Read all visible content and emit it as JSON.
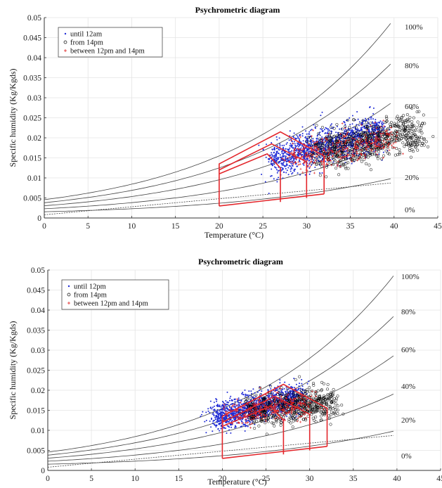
{
  "chart_data": [
    {
      "type": "scatter",
      "title": "Psychrometric diagram",
      "xlabel": "Temperature (°C)",
      "ylabel": "Specific humidity (Kg/Kgds)",
      "xlim": [
        0,
        45
      ],
      "ylim": [
        0,
        0.05
      ],
      "xticks": [
        "0",
        "5",
        "10",
        "15",
        "20",
        "25",
        "30",
        "35",
        "40",
        "45"
      ],
      "yticks": [
        "0",
        "0.005",
        "0.01",
        "0.015",
        "0.02",
        "0.025",
        "0.03",
        "0.035",
        "0.04",
        "0.045",
        "0.05"
      ],
      "grid": true,
      "legend_position": "top-left",
      "rh_curve_labels": [
        {
          "rh": 1.0,
          "label": "100%"
        },
        {
          "rh": 0.8,
          "label": "80%"
        },
        {
          "rh": 0.6,
          "label": "60%"
        },
        {
          "rh": 0.4,
          "label": "40%"
        },
        {
          "rh": 0.2,
          "label": "20%"
        },
        {
          "rh": 0.0,
          "label": "0%"
        }
      ],
      "comfort_zones": [
        {
          "points": [
            [
              20,
              0.003
            ],
            [
              20,
              0.0135
            ],
            [
              27,
              0.0215
            ],
            [
              32,
              0.0155
            ],
            [
              32,
              0.006
            ]
          ]
        },
        {
          "points": [
            [
              20,
              0.012
            ],
            [
              26,
              0.0185
            ],
            [
              30,
              0.014
            ],
            [
              30,
              0.005
            ]
          ]
        },
        {
          "points": [
            [
              20,
              0.011
            ],
            [
              25.5,
              0.016
            ],
            [
              27,
              0.0125
            ],
            [
              27,
              0.004
            ]
          ]
        }
      ],
      "series": [
        {
          "name": "until 12am",
          "marker": "dot",
          "color": "#1f2bd6",
          "cloud": {
            "x_range": [
              26,
              38.5
            ],
            "center_y_at_xmin": 0.0145,
            "center_y_at_xmax": 0.0215,
            "spread": 0.005,
            "count": 1400
          }
        },
        {
          "name": "from 14pm",
          "marker": "circle",
          "color": "#000000",
          "cloud": {
            "x_range": [
              31,
              43
            ],
            "center_y_at_xmin": 0.016,
            "center_y_at_xmax": 0.022,
            "spread": 0.0055,
            "count": 700
          }
        },
        {
          "name": "between 12pm and 14pm",
          "marker": "cross",
          "color": "#e02020",
          "cloud": {
            "x_range": [
              28,
              40
            ],
            "center_y_at_xmin": 0.015,
            "center_y_at_xmax": 0.02,
            "spread": 0.004,
            "count": 350
          }
        }
      ]
    },
    {
      "type": "scatter",
      "title": "Psychrometric diagram",
      "xlabel": "Temperature (°C)",
      "ylabel": "Specific humidity (Kg/Kgds)",
      "xlim": [
        0,
        45
      ],
      "ylim": [
        0,
        0.05
      ],
      "xticks": [
        "0",
        "5",
        "10",
        "15",
        "20",
        "25",
        "30",
        "35",
        "40",
        "45"
      ],
      "yticks": [
        "0",
        "0.005",
        "0.01",
        "0.015",
        "0.02",
        "0.025",
        "0.03",
        "0.035",
        "0.04",
        "0.045",
        "0.05"
      ],
      "grid": true,
      "legend_position": "top-left",
      "rh_curve_labels": [
        {
          "rh": 1.0,
          "label": "100%"
        },
        {
          "rh": 0.8,
          "label": "80%"
        },
        {
          "rh": 0.6,
          "label": "60%"
        },
        {
          "rh": 0.4,
          "label": "40%"
        },
        {
          "rh": 0.2,
          "label": "20%"
        },
        {
          "rh": 0.0,
          "label": "0%"
        }
      ],
      "comfort_zones": [
        {
          "points": [
            [
              20,
              0.003
            ],
            [
              20,
              0.0135
            ],
            [
              27,
              0.0215
            ],
            [
              32,
              0.0155
            ],
            [
              32,
              0.006
            ]
          ]
        },
        {
          "points": [
            [
              20,
              0.012
            ],
            [
              26,
              0.0185
            ],
            [
              30,
              0.014
            ],
            [
              30,
              0.005
            ]
          ]
        },
        {
          "points": [
            [
              20,
              0.011
            ],
            [
              25.5,
              0.016
            ],
            [
              27,
              0.0125
            ],
            [
              27,
              0.004
            ]
          ]
        }
      ],
      "series": [
        {
          "name": "until 12pm",
          "marker": "dot",
          "color": "#1f2bd6",
          "cloud": {
            "x_range": [
              19,
              29
            ],
            "center_y_at_xmin": 0.013,
            "center_y_at_xmax": 0.0185,
            "spread": 0.004,
            "count": 1400
          }
        },
        {
          "name": "from 14pm",
          "marker": "circle",
          "color": "#000000",
          "cloud": {
            "x_range": [
              23,
              33
            ],
            "center_y_at_xmin": 0.015,
            "center_y_at_xmax": 0.017,
            "spread": 0.0045,
            "count": 600
          }
        },
        {
          "name": "between 12pm and 14pm",
          "marker": "cross",
          "color": "#e02020",
          "cloud": {
            "x_range": [
              21,
              30
            ],
            "center_y_at_xmin": 0.014,
            "center_y_at_xmax": 0.017,
            "spread": 0.0035,
            "count": 300
          }
        }
      ]
    }
  ]
}
